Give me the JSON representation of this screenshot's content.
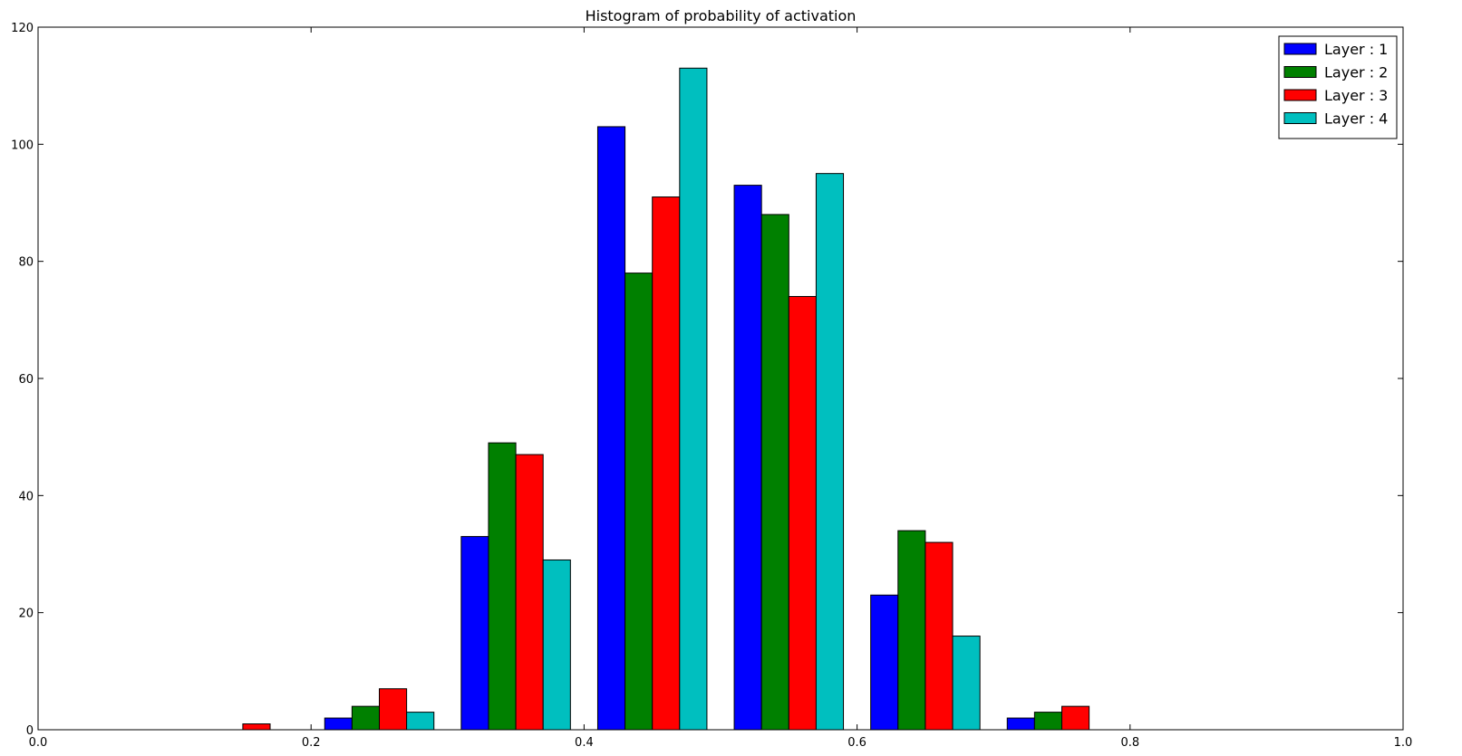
{
  "chart_data": {
    "type": "bar",
    "title": "Histogram of probability of activation",
    "xlabel": "",
    "ylabel": "",
    "xlim": [
      0.0,
      1.0
    ],
    "ylim": [
      0,
      120
    ],
    "grid": false,
    "legend_position": "top-right",
    "x_ticks": [
      "0.0",
      "0.2",
      "0.4",
      "0.6",
      "0.8",
      "1.0"
    ],
    "y_ticks": [
      "0",
      "20",
      "40",
      "60",
      "80",
      "100",
      "120"
    ],
    "bin_edges": [
      0.0,
      0.1,
      0.2,
      0.3,
      0.4,
      0.5,
      0.6,
      0.7,
      0.8,
      0.9,
      1.0
    ],
    "series": [
      {
        "name": "Layer : 1",
        "color": "#0000ff",
        "values": [
          0,
          0,
          2,
          33,
          103,
          93,
          23,
          2,
          0,
          0
        ]
      },
      {
        "name": "Layer : 2",
        "color": "#008000",
        "values": [
          0,
          0,
          4,
          49,
          78,
          88,
          34,
          3,
          0,
          0
        ]
      },
      {
        "name": "Layer : 3",
        "color": "#ff0000",
        "values": [
          0,
          1,
          7,
          47,
          91,
          74,
          32,
          4,
          0,
          0
        ]
      },
      {
        "name": "Layer : 4",
        "color": "#00bfbf",
        "values": [
          0,
          0,
          3,
          29,
          113,
          95,
          16,
          0,
          0,
          0
        ]
      }
    ]
  }
}
